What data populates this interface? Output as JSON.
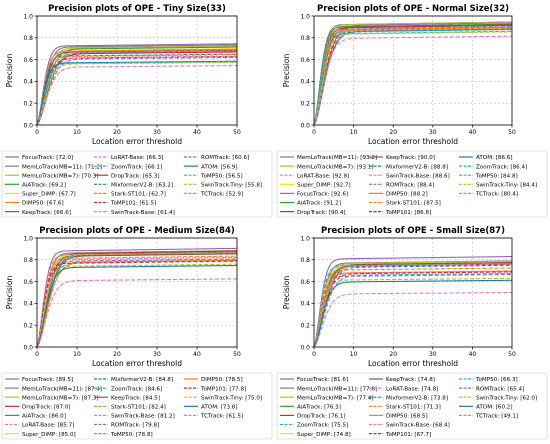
{
  "chart_data": [
    {
      "type": "line",
      "title": "Precision plots of OPE - Tiny Size(33)",
      "xlabel": "Location error threshold",
      "ylabel": "Precision",
      "xlim": [
        0,
        50
      ],
      "ylim": [
        0,
        1
      ],
      "xticks": [
        0,
        10,
        20,
        30,
        40,
        50
      ],
      "yticks": [
        0.0,
        0.2,
        0.4,
        0.6,
        0.8,
        1.0
      ],
      "grid": true,
      "legend_position": "below",
      "series": [
        {
          "name": "FocusTrack: [72.0]",
          "color": "#9467bd",
          "dash": "solid",
          "final": 0.745
        },
        {
          "name": "MemLoTrack(MB=11): [71.2]",
          "color": "#7f7f7f",
          "dash": "solid",
          "final": 0.735
        },
        {
          "name": "MemLoTrack(MB=7): [70.3]",
          "color": "#bcbd22",
          "dash": "solid",
          "final": 0.725
        },
        {
          "name": "AiATrack: [69.2]",
          "color": "#2ca02c",
          "dash": "solid",
          "final": 0.715
        },
        {
          "name": "Super_DiMP: [67.7]",
          "color": "#ffdd00",
          "dash": "solid",
          "final": 0.7
        },
        {
          "name": "DiMP50: [67.6]",
          "color": "#ff7f0e",
          "dash": "solid",
          "final": 0.695
        },
        {
          "name": "KeepTrack: [66.6]",
          "color": "#8c564b",
          "dash": "solid",
          "final": 0.685
        },
        {
          "name": "LoRAT-Base: [66.3]",
          "color": "#e377c2",
          "dash": "dashed",
          "final": 0.68
        },
        {
          "name": "ZoomTrack: [66.1]",
          "color": "#17becf",
          "dash": "dashed",
          "final": 0.675
        },
        {
          "name": "DropTrack: [65.3]",
          "color": "#d62728",
          "dash": "solid",
          "final": 0.67
        },
        {
          "name": "MixformerV2-B: [63.2]",
          "color": "#1f77b4",
          "dash": "dashed",
          "final": 0.65
        },
        {
          "name": "Stark-ST101: [62.7]",
          "color": "#ff7f0e",
          "dash": "dashed",
          "final": 0.645
        },
        {
          "name": "ToMP101: [61.5]",
          "color": "#d62728",
          "dash": "dashed",
          "final": 0.63
        },
        {
          "name": "SwinTrack-Base: [61.4]",
          "color": "#e377c2",
          "dash": "dashed",
          "final": 0.63
        },
        {
          "name": "ROMTrack: [60.6]",
          "color": "#9467bd",
          "dash": "dashed",
          "final": 0.62
        },
        {
          "name": "ATOM: [56.9]",
          "color": "#1f77b4",
          "dash": "solid",
          "final": 0.585
        },
        {
          "name": "ToMP50: [56.5]",
          "color": "#17becf",
          "dash": "dashed",
          "final": 0.58
        },
        {
          "name": "SwinTrack-Tiny: [55.8]",
          "color": "#bcbd22",
          "dash": "dashed",
          "final": 0.575
        },
        {
          "name": "TCTrack: [52.9]",
          "color": "#e377c2",
          "dash": "dashed",
          "final": 0.545
        }
      ]
    },
    {
      "type": "line",
      "title": "Precision plots of OPE - Normal Size(32)",
      "xlabel": "Location error threshold",
      "ylabel": "Precision",
      "xlim": [
        0,
        50
      ],
      "ylim": [
        0,
        1
      ],
      "xticks": [
        0,
        10,
        20,
        30,
        40,
        50
      ],
      "yticks": [
        0.0,
        0.2,
        0.4,
        0.6,
        0.8,
        1.0
      ],
      "grid": true,
      "legend_position": "below",
      "series": [
        {
          "name": "MemLoTrack(MB=11): [93.2]",
          "color": "#7f7f7f",
          "dash": "solid",
          "final": 0.945
        },
        {
          "name": "MemLoTrack(MB=7): [93.1]",
          "color": "#bcbd22",
          "dash": "solid",
          "final": 0.944
        },
        {
          "name": "LoRAT-Base: [92.8]",
          "color": "#e377c2",
          "dash": "dashed",
          "final": 0.94
        },
        {
          "name": "Super_DiMP: [92.7]",
          "color": "#ffdd00",
          "dash": "solid",
          "final": 0.938
        },
        {
          "name": "FocusTrack: [92.6]",
          "color": "#9467bd",
          "dash": "solid",
          "final": 0.937
        },
        {
          "name": "AiATrack: [91.2]",
          "color": "#2ca02c",
          "dash": "solid",
          "final": 0.925
        },
        {
          "name": "DropTrack: [90.4]",
          "color": "#d62728",
          "dash": "solid",
          "final": 0.918
        },
        {
          "name": "KeepTrack: [90.0]",
          "color": "#8c564b",
          "dash": "solid",
          "final": 0.914
        },
        {
          "name": "MixformerV2-B: [88.8]",
          "color": "#1f77b4",
          "dash": "dashed",
          "final": 0.902
        },
        {
          "name": "SwinTrack-Base: [88.6]",
          "color": "#e377c2",
          "dash": "dashed",
          "final": 0.9
        },
        {
          "name": "ROMTrack: [88.4]",
          "color": "#9467bd",
          "dash": "dashed",
          "final": 0.898
        },
        {
          "name": "DiMP50: [88.2]",
          "color": "#ff7f0e",
          "dash": "solid",
          "final": 0.895
        },
        {
          "name": "Stark-ST101: [87.5]",
          "color": "#ff7f0e",
          "dash": "dashed",
          "final": 0.888
        },
        {
          "name": "ToMP101: [86.8]",
          "color": "#d62728",
          "dash": "dashed",
          "final": 0.88
        },
        {
          "name": "ATOM: [86.6]",
          "color": "#1f77b4",
          "dash": "solid",
          "final": 0.878
        },
        {
          "name": "ZoomTrack: [86.4]",
          "color": "#17becf",
          "dash": "dashed",
          "final": 0.876
        },
        {
          "name": "ToMP50: [84.8]",
          "color": "#17becf",
          "dash": "dashed",
          "final": 0.86
        },
        {
          "name": "SwinTrack-Tiny: [84.4]",
          "color": "#bcbd22",
          "dash": "dashed",
          "final": 0.855
        },
        {
          "name": "TCTrack: [80.4]",
          "color": "#e377c2",
          "dash": "dashed",
          "final": 0.815
        }
      ]
    },
    {
      "type": "line",
      "title": "Precision plots of OPE - Medium Size(84)",
      "xlabel": "Location error threshold",
      "ylabel": "Precision",
      "xlim": [
        0,
        50
      ],
      "ylim": [
        0,
        1
      ],
      "xticks": [
        0,
        10,
        20,
        30,
        40,
        50
      ],
      "yticks": [
        0.0,
        0.2,
        0.4,
        0.6,
        0.8,
        1.0
      ],
      "grid": true,
      "legend_position": "below",
      "series": [
        {
          "name": "FocusTrack: [89.5]",
          "color": "#9467bd",
          "dash": "solid",
          "final": 0.905
        },
        {
          "name": "MemLoTrack(MB=11): [87.4]",
          "color": "#7f7f7f",
          "dash": "solid",
          "final": 0.885
        },
        {
          "name": "MemLoTrack(MB=7): [87.3]",
          "color": "#bcbd22",
          "dash": "solid",
          "final": 0.884
        },
        {
          "name": "DropTrack: [87.0]",
          "color": "#d62728",
          "dash": "solid",
          "final": 0.88
        },
        {
          "name": "AiATrack: [86.0]",
          "color": "#2ca02c",
          "dash": "solid",
          "final": 0.87
        },
        {
          "name": "LoRAT-Base: [85.7]",
          "color": "#e377c2",
          "dash": "dashed",
          "final": 0.867
        },
        {
          "name": "Super_DiMP: [85.0]",
          "color": "#ffdd00",
          "dash": "solid",
          "final": 0.86
        },
        {
          "name": "MixformerV2-B: [84.8]",
          "color": "#1f77b4",
          "dash": "dashed",
          "final": 0.858
        },
        {
          "name": "ZoomTrack: [84.6]",
          "color": "#17becf",
          "dash": "dashed",
          "final": 0.856
        },
        {
          "name": "KeepTrack: [84.5]",
          "color": "#8c564b",
          "dash": "solid",
          "final": 0.855
        },
        {
          "name": "Stark-ST101: [82.4]",
          "color": "#ff7f0e",
          "dash": "dashed",
          "final": 0.834
        },
        {
          "name": "SwinTrack-Base: [81.2]",
          "color": "#e377c2",
          "dash": "dashed",
          "final": 0.822
        },
        {
          "name": "ROMTrack: [79.8]",
          "color": "#9467bd",
          "dash": "dashed",
          "final": 0.808
        },
        {
          "name": "ToMP50: [78.8]",
          "color": "#17becf",
          "dash": "dashed",
          "final": 0.798
        },
        {
          "name": "DiMP50: [78.5]",
          "color": "#ff7f0e",
          "dash": "solid",
          "final": 0.795
        },
        {
          "name": "ToMP101: [77.8]",
          "color": "#d62728",
          "dash": "dashed",
          "final": 0.788
        },
        {
          "name": "SwinTrack-Tiny: [75.0]",
          "color": "#bcbd22",
          "dash": "dashed",
          "final": 0.76
        },
        {
          "name": "ATOM: [73.8]",
          "color": "#1f77b4",
          "dash": "solid",
          "final": 0.748
        },
        {
          "name": "TCTrack: [61.5]",
          "color": "#e377c2",
          "dash": "dashed",
          "final": 0.625
        }
      ]
    },
    {
      "type": "line",
      "title": "Precision plots of OPE - Small Size(87)",
      "xlabel": "Location error threshold",
      "ylabel": "Precision",
      "xlim": [
        0,
        50
      ],
      "ylim": [
        0,
        1
      ],
      "xticks": [
        0,
        10,
        20,
        30,
        40,
        50
      ],
      "yticks": [
        0.0,
        0.2,
        0.4,
        0.6,
        0.8,
        1.0
      ],
      "grid": true,
      "legend_position": "below",
      "series": [
        {
          "name": "FocusTrack: [81.6]",
          "color": "#9467bd",
          "dash": "solid",
          "final": 0.83
        },
        {
          "name": "MemLoTrack(MB=11): [77.8]",
          "color": "#7f7f7f",
          "dash": "solid",
          "final": 0.79
        },
        {
          "name": "MemLoTrack(MB=7): [77.4]",
          "color": "#bcbd22",
          "dash": "solid",
          "final": 0.786
        },
        {
          "name": "AiATrack: [76.3]",
          "color": "#2ca02c",
          "dash": "solid",
          "final": 0.775
        },
        {
          "name": "DropTrack: [76.1]",
          "color": "#d62728",
          "dash": "solid",
          "final": 0.773
        },
        {
          "name": "ZoomTrack: [75.5]",
          "color": "#17becf",
          "dash": "dashed",
          "final": 0.767
        },
        {
          "name": "Super_DiMP: [74.8]",
          "color": "#ffdd00",
          "dash": "solid",
          "final": 0.76
        },
        {
          "name": "KeepTrack: [74.8]",
          "color": "#8c564b",
          "dash": "solid",
          "final": 0.76
        },
        {
          "name": "LoRAT-Base: [74.8]",
          "color": "#e377c2",
          "dash": "dashed",
          "final": 0.76
        },
        {
          "name": "MixformerV2-B: [73.8]",
          "color": "#1f77b4",
          "dash": "dashed",
          "final": 0.75
        },
        {
          "name": "Stark-ST101: [71.3]",
          "color": "#ff7f0e",
          "dash": "dashed",
          "final": 0.725
        },
        {
          "name": "DiMP50: [68.5]",
          "color": "#ff7f0e",
          "dash": "solid",
          "final": 0.697
        },
        {
          "name": "SwinTrack-Base: [68.4]",
          "color": "#e377c2",
          "dash": "dashed",
          "final": 0.696
        },
        {
          "name": "ToMP101: [67.7]",
          "color": "#d62728",
          "dash": "dashed",
          "final": 0.689
        },
        {
          "name": "ToMP50: [66.3]",
          "color": "#17becf",
          "dash": "dashed",
          "final": 0.675
        },
        {
          "name": "ROMTrack: [65.4]",
          "color": "#9467bd",
          "dash": "dashed",
          "final": 0.665
        },
        {
          "name": "SwinTrack-Tiny: [62.0]",
          "color": "#bcbd22",
          "dash": "dashed",
          "final": 0.63
        },
        {
          "name": "ATOM: [60.2]",
          "color": "#1f77b4",
          "dash": "solid",
          "final": 0.612
        },
        {
          "name": "TCTrack: [49.1]",
          "color": "#e377c2",
          "dash": "dashed",
          "final": 0.5
        }
      ]
    }
  ]
}
